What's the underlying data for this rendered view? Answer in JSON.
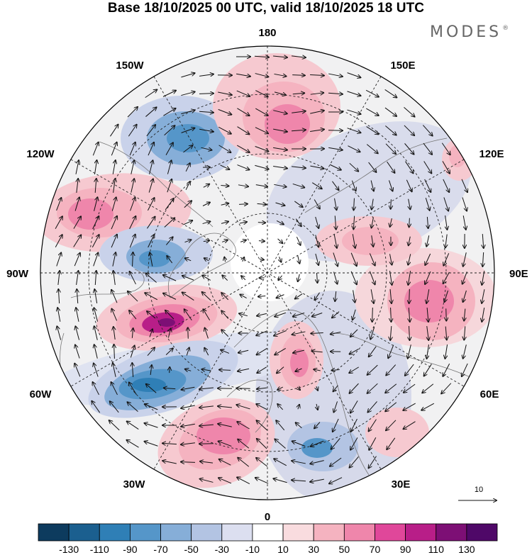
{
  "title": "Base 18/10/2025 00 UTC, valid 18/10/2025 18 UTC",
  "logo": {
    "text": "MODES",
    "mark": "®"
  },
  "longitude_labels": {
    "top": "180",
    "bottom": "0",
    "left": "90W",
    "right": "90E",
    "upper_left": "150W",
    "upper_left_mid": "120W",
    "lower_left_mid": "60W",
    "lower_left": "30W",
    "upper_right": "150E",
    "upper_right_mid": "120E",
    "lower_right_mid": "60E",
    "lower_right": "30E"
  },
  "reference_vector": {
    "label": "10"
  },
  "colorbar": {
    "ticks": [
      "-130",
      "-110",
      "-90",
      "-70",
      "-50",
      "-30",
      "-10",
      "10",
      "30",
      "50",
      "70",
      "90",
      "110",
      "130"
    ],
    "colors": [
      "#0d3b5e",
      "#1b5f8f",
      "#2f7fb6",
      "#5596c9",
      "#86aed8",
      "#b3c4e3",
      "#dcdff0",
      "#ffffff",
      "#f9dcdf",
      "#f5b3c0",
      "#ef86ab",
      "#e0479a",
      "#b81e88",
      "#7d0f75",
      "#4f0868"
    ]
  },
  "colors": {
    "neg_strong": "#2f7fb6",
    "neg_mid": "#86aed8",
    "neg_weak": "#c9d2ea",
    "pos_weak": "#f6c9d0",
    "pos_mid": "#ef86ab",
    "pos_strong": "#b81e88"
  }
}
